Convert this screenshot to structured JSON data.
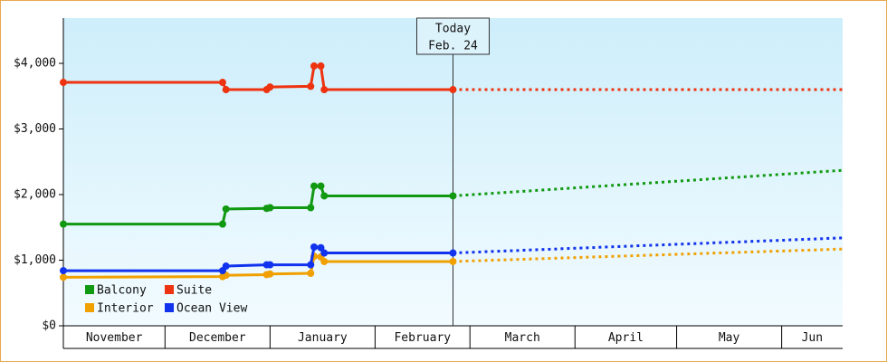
{
  "chart_data": {
    "type": "line",
    "x": [
      0,
      47,
      48,
      60,
      61,
      73,
      74,
      76,
      77,
      115,
      230
    ],
    "xlim": [
      0,
      230
    ],
    "xticks": [
      {
        "value": 0,
        "label": "November"
      },
      {
        "value": 30,
        "label": "December"
      },
      {
        "value": 61,
        "label": "January"
      },
      {
        "value": 92,
        "label": "February"
      },
      {
        "value": 120,
        "label": "March"
      },
      {
        "value": 151,
        "label": "April"
      },
      {
        "value": 181,
        "label": "May"
      },
      {
        "value": 212,
        "label": "Jun"
      }
    ],
    "ylim": [
      0,
      4690
    ],
    "yticks": [
      {
        "value": 0,
        "label": "$0"
      },
      {
        "value": 1000,
        "label": "$1,000"
      },
      {
        "value": 2000,
        "label": "$2,000"
      },
      {
        "value": 3000,
        "label": "$3,000"
      },
      {
        "value": 4000,
        "label": "$4,000"
      }
    ],
    "annotation": {
      "x": 115,
      "lines": [
        "Today",
        "Feb. 24"
      ]
    },
    "legend": "lower left",
    "series": [
      {
        "name": "Balcony",
        "color": "#119911",
        "values": [
          1550,
          1550,
          1780,
          1790,
          1800,
          1800,
          2130,
          2130,
          1980,
          1980,
          2370
        ]
      },
      {
        "name": "Suite",
        "color": "#ee3311",
        "values": [
          3710,
          3710,
          3600,
          3600,
          3640,
          3650,
          3960,
          3960,
          3600,
          3600,
          3600
        ]
      },
      {
        "name": "Interior",
        "color": "#f0a000",
        "values": [
          740,
          750,
          770,
          780,
          790,
          800,
          1060,
          1050,
          980,
          980,
          1170
        ]
      },
      {
        "name": "Ocean View",
        "color": "#1133ee",
        "values": [
          840,
          840,
          910,
          930,
          930,
          930,
          1200,
          1190,
          1110,
          1110,
          1340
        ]
      }
    ]
  }
}
